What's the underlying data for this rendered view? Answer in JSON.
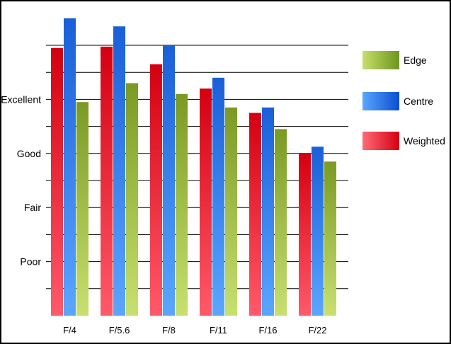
{
  "chart_data": {
    "type": "bar",
    "title": "",
    "xlabel": "",
    "ylabel": "",
    "categories": [
      "F/4",
      "F/5.6",
      "F/8",
      "F/11",
      "F/16",
      "F/22"
    ],
    "y_tick_labels": [
      {
        "value": 2,
        "label": "Poor"
      },
      {
        "value": 4,
        "label": "Fair"
      },
      {
        "value": 6,
        "label": "Good"
      },
      {
        "value": 8,
        "label": "Excellent"
      }
    ],
    "ylim": [
      0,
      10
    ],
    "grid": true,
    "legend_position": "right",
    "series": [
      {
        "name": "Weighted",
        "color": "#e8101f",
        "values": [
          9.9,
          9.95,
          9.3,
          8.4,
          7.5,
          6.0
        ]
      },
      {
        "name": "Centre",
        "color": "#1a66e0",
        "values": [
          11.0,
          10.7,
          10.0,
          8.8,
          7.7,
          6.25
        ]
      },
      {
        "name": "Edge",
        "color": "#8faf2e",
        "values": [
          7.9,
          8.6,
          8.2,
          7.7,
          6.9,
          5.7
        ]
      }
    ],
    "legend_order": [
      "Edge",
      "Centre",
      "Weighted"
    ]
  }
}
